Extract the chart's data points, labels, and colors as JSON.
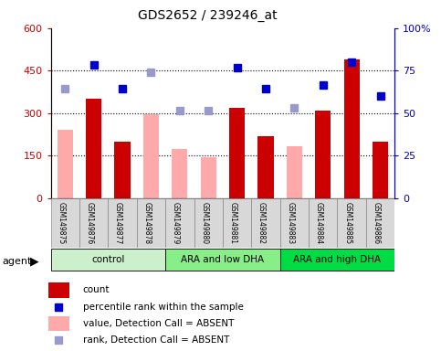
{
  "title": "GDS2652 / 239246_at",
  "samples": [
    "GSM149875",
    "GSM149876",
    "GSM149877",
    "GSM149878",
    "GSM149879",
    "GSM149880",
    "GSM149881",
    "GSM149882",
    "GSM149883",
    "GSM149884",
    "GSM149885",
    "GSM149886"
  ],
  "groups": [
    {
      "label": "control",
      "start": 0,
      "end": 3,
      "color": "#ccf0cc"
    },
    {
      "label": "ARA and low DHA",
      "start": 4,
      "end": 7,
      "color": "#88ee88"
    },
    {
      "label": "ARA and high DHA",
      "start": 8,
      "end": 11,
      "color": "#00dd44"
    }
  ],
  "count_values": [
    null,
    350,
    200,
    null,
    null,
    null,
    320,
    220,
    null,
    310,
    490,
    200
  ],
  "absent_bar_values": [
    240,
    null,
    null,
    295,
    175,
    145,
    null,
    null,
    185,
    null,
    null,
    null
  ],
  "percentile_rank_present": [
    null,
    470,
    385,
    null,
    null,
    null,
    460,
    385,
    null,
    400,
    480,
    360
  ],
  "percentile_rank_absent": [
    385,
    null,
    null,
    445,
    null,
    null,
    null,
    null,
    null,
    null,
    null,
    null
  ],
  "absent_rank_values": [
    null,
    null,
    null,
    null,
    310,
    310,
    null,
    null,
    320,
    null,
    null,
    null
  ],
  "ylim": [
    0,
    600
  ],
  "y2lim": [
    0,
    100
  ],
  "yticks": [
    0,
    150,
    300,
    450,
    600
  ],
  "y2ticks": [
    0,
    25,
    50,
    75,
    100
  ],
  "bar_width": 0.55,
  "colors": {
    "count_present": "#cc0000",
    "count_absent": "#ffaaaa",
    "rank_present": "#0000cc",
    "rank_absent": "#9999cc",
    "axis_left": "#cc0000",
    "axis_right": "#0000cc",
    "sample_box_bg": "#d8d8d8",
    "sample_box_edge": "#888888"
  },
  "legend_items": [
    {
      "label": "count",
      "color": "#cc0000",
      "type": "bar"
    },
    {
      "label": "percentile rank within the sample",
      "color": "#0000cc",
      "type": "square"
    },
    {
      "label": "value, Detection Call = ABSENT",
      "color": "#ffaaaa",
      "type": "bar"
    },
    {
      "label": "rank, Detection Call = ABSENT",
      "color": "#9999cc",
      "type": "square"
    }
  ]
}
